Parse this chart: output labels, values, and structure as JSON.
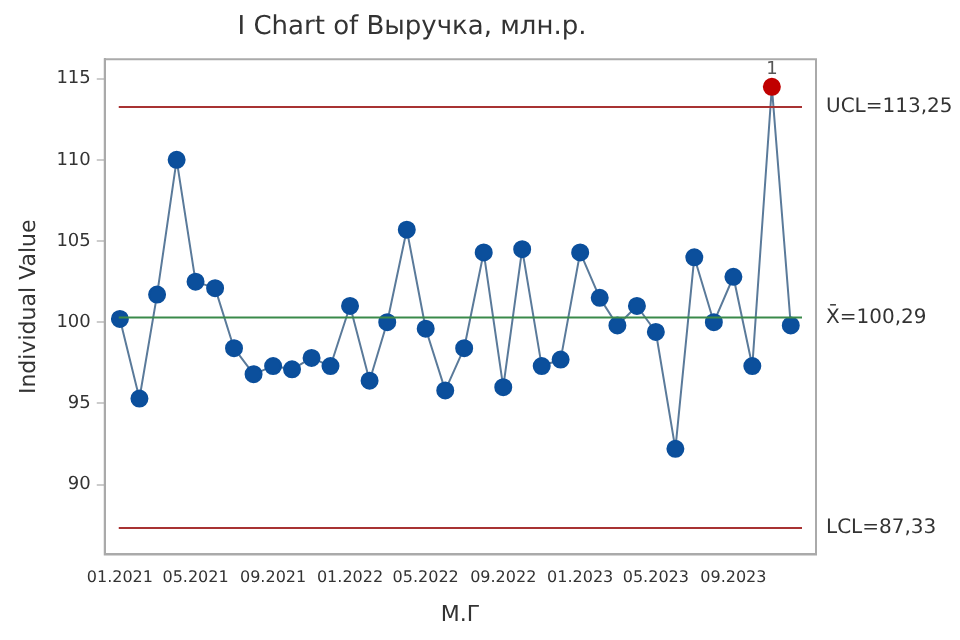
{
  "chart_data": {
    "type": "line",
    "title": "I Chart of Выручка, млн.р.",
    "xlabel": "М.Г",
    "ylabel": "Individual Value",
    "x": [
      "2021-01",
      "2021-02",
      "2021-03",
      "2021-04",
      "2021-05",
      "2021-06",
      "2021-07",
      "2021-08",
      "2021-09",
      "2021-10",
      "2021-11",
      "2021-12",
      "2022-01",
      "2022-02",
      "2022-03",
      "2022-04",
      "2022-05",
      "2022-06",
      "2022-07",
      "2022-08",
      "2022-09",
      "2022-10",
      "2022-11",
      "2022-12",
      "2023-01",
      "2023-02",
      "2023-03",
      "2023-04",
      "2023-05",
      "2023-06",
      "2023-07",
      "2023-08",
      "2023-09",
      "2023-10",
      "2023-11",
      "2023-12"
    ],
    "series": [
      {
        "colors": [
          "#0b4f9c",
          "#0b4f9c",
          "#0b4f9c",
          "#0b4f9c",
          "#0b4f9c",
          "#0b4f9c",
          "#0b4f9c",
          "#0b4f9c",
          "#0b4f9c",
          "#0b4f9c",
          "#0b4f9c",
          "#0b4f9c",
          "#0b4f9c",
          "#0b4f9c",
          "#0b4f9c",
          "#0b4f9c",
          "#0b4f9c",
          "#0b4f9c",
          "#0b4f9c",
          "#0b4f9c",
          "#0b4f9c",
          "#0b4f9c",
          "#0b4f9c",
          "#0b4f9c",
          "#0b4f9c",
          "#0b4f9c",
          "#0b4f9c",
          "#0b4f9c",
          "#0b4f9c",
          "#0b4f9c",
          "#0b4f9c",
          "#0b4f9c",
          "#0b4f9c",
          "#0b4f9c",
          "#c00000",
          "#0b4f9c"
        ],
        "marker": "circle",
        "values": [
          100.2,
          95.3,
          101.7,
          110.0,
          102.5,
          102.1,
          98.4,
          96.8,
          97.3,
          97.1,
          97.8,
          97.3,
          101.0,
          96.4,
          100.0,
          105.7,
          99.6,
          95.8,
          98.4,
          104.3,
          96.0,
          104.5,
          97.3,
          97.7,
          104.3,
          101.5,
          99.8,
          101.0,
          99.4,
          92.2,
          104.0,
          100.0,
          102.8,
          97.3,
          114.5,
          99.8
        ]
      }
    ],
    "xlim": [
      "2020-12-08",
      "2024-01-10"
    ],
    "xticks": [
      {
        "value": "2021-01",
        "label": "01.2021"
      },
      {
        "value": "2021-05",
        "label": "05.2021"
      },
      {
        "value": "2021-09",
        "label": "09.2021"
      },
      {
        "value": "2022-01",
        "label": "01.2022"
      },
      {
        "value": "2022-05",
        "label": "05.2022"
      },
      {
        "value": "2022-09",
        "label": "09.2022"
      },
      {
        "value": "2023-01",
        "label": "01.2023"
      },
      {
        "value": "2023-05",
        "label": "05.2023"
      },
      {
        "value": "2023-09",
        "label": "09.2023"
      }
    ],
    "ylim": [
      85.7,
      116.2
    ],
    "yticks": [
      90,
      95,
      100,
      105,
      110,
      115
    ],
    "ref_lines": [
      {
        "axis": "y",
        "value": 113.25,
        "label": "UCL=113,25",
        "color": "#a83232"
      },
      {
        "axis": "y",
        "value": 100.29,
        "label": "X̄=100,29",
        "color": "#3a8a4a"
      },
      {
        "axis": "y",
        "value": 87.33,
        "label": "LCL=87,33",
        "color": "#a83232"
      }
    ],
    "annotations": [
      {
        "text": "1",
        "x": "2023-11",
        "y": 114.5
      }
    ],
    "grid": false,
    "legend": false
  }
}
